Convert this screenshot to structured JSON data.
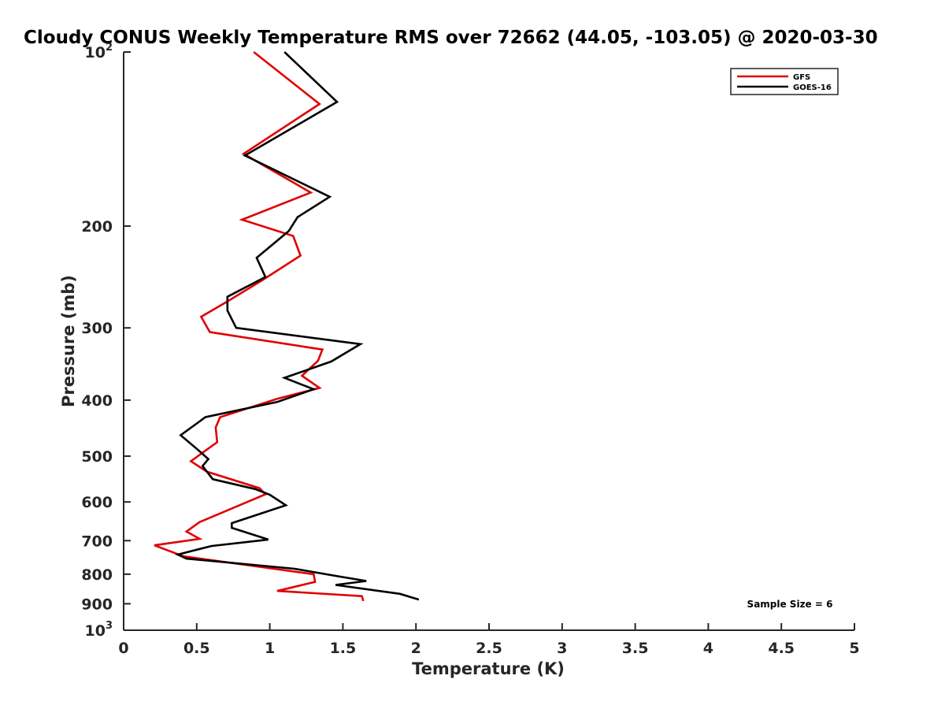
{
  "chart_data": {
    "type": "line",
    "title": "Cloudy CONUS Weekly Temperature RMS over 72662 (44.05, -103.05) @ 2020-03-30",
    "xlabel": "Temperature (K)",
    "ylabel": "Pressure (mb)",
    "xlim": [
      0,
      5
    ],
    "ylim": [
      100,
      1000
    ],
    "y_scale": "log",
    "y_reversed": true,
    "grid": false,
    "legend_position": "top-right",
    "x_ticks": [
      "0",
      "0.5",
      "1",
      "1.5",
      "2",
      "2.5",
      "3",
      "3.5",
      "4",
      "4.5",
      "5"
    ],
    "y_tick_labels": [
      {
        "value": 100,
        "base": "10",
        "exp": "2"
      },
      {
        "value": 200,
        "label": "200"
      },
      {
        "value": 300,
        "label": "300"
      },
      {
        "value": 400,
        "label": "400"
      },
      {
        "value": 500,
        "label": "500"
      },
      {
        "value": 600,
        "label": "600"
      },
      {
        "value": 700,
        "label": "700"
      },
      {
        "value": 800,
        "label": "800"
      },
      {
        "value": 900,
        "label": "900"
      },
      {
        "value": 1000,
        "base": "10",
        "exp": "3"
      }
    ],
    "annotation": "Sample Size = 6",
    "series": [
      {
        "name": "GFS",
        "color": "#e00000",
        "points": [
          [
            0.89,
            100
          ],
          [
            1.34,
            123
          ],
          [
            0.82,
            150
          ],
          [
            1.28,
            175
          ],
          [
            0.81,
            195
          ],
          [
            1.16,
            208
          ],
          [
            1.21,
            225
          ],
          [
            0.95,
            248
          ],
          [
            0.71,
            270
          ],
          [
            0.53,
            287
          ],
          [
            0.59,
            305
          ],
          [
            1.36,
            327
          ],
          [
            1.33,
            342
          ],
          [
            1.22,
            363
          ],
          [
            1.34,
            381
          ],
          [
            1.05,
            398
          ],
          [
            0.66,
            428
          ],
          [
            0.63,
            446
          ],
          [
            0.64,
            473
          ],
          [
            0.46,
            510
          ],
          [
            0.57,
            532
          ],
          [
            0.93,
            568
          ],
          [
            0.97,
            582
          ],
          [
            0.52,
            650
          ],
          [
            0.43,
            675
          ],
          [
            0.52,
            695
          ],
          [
            0.21,
            713
          ],
          [
            0.41,
            745
          ],
          [
            1.3,
            800
          ],
          [
            1.31,
            825
          ],
          [
            1.05,
            855
          ],
          [
            1.63,
            873
          ],
          [
            1.64,
            890
          ]
        ]
      },
      {
        "name": "GOES-16",
        "color": "#000000",
        "points": [
          [
            1.1,
            100
          ],
          [
            1.46,
            122
          ],
          [
            0.83,
            151
          ],
          [
            1.41,
            178
          ],
          [
            1.19,
            193
          ],
          [
            1.13,
            204
          ],
          [
            0.91,
            227
          ],
          [
            0.97,
            245
          ],
          [
            0.71,
            265
          ],
          [
            0.71,
            280
          ],
          [
            0.77,
            300
          ],
          [
            1.62,
            320
          ],
          [
            1.42,
            343
          ],
          [
            1.1,
            366
          ],
          [
            1.3,
            383
          ],
          [
            1.05,
            403
          ],
          [
            0.56,
            428
          ],
          [
            0.39,
            460
          ],
          [
            0.51,
            488
          ],
          [
            0.58,
            506
          ],
          [
            0.54,
            520
          ],
          [
            0.61,
            548
          ],
          [
            0.9,
            570
          ],
          [
            1.0,
            583
          ],
          [
            1.11,
            608
          ],
          [
            0.74,
            653
          ],
          [
            0.74,
            665
          ],
          [
            0.99,
            697
          ],
          [
            0.6,
            715
          ],
          [
            0.37,
            740
          ],
          [
            0.43,
            752
          ],
          [
            1.17,
            783
          ],
          [
            1.47,
            807
          ],
          [
            1.66,
            822
          ],
          [
            1.45,
            835
          ],
          [
            1.89,
            865
          ],
          [
            2.02,
            885
          ]
        ]
      }
    ]
  }
}
